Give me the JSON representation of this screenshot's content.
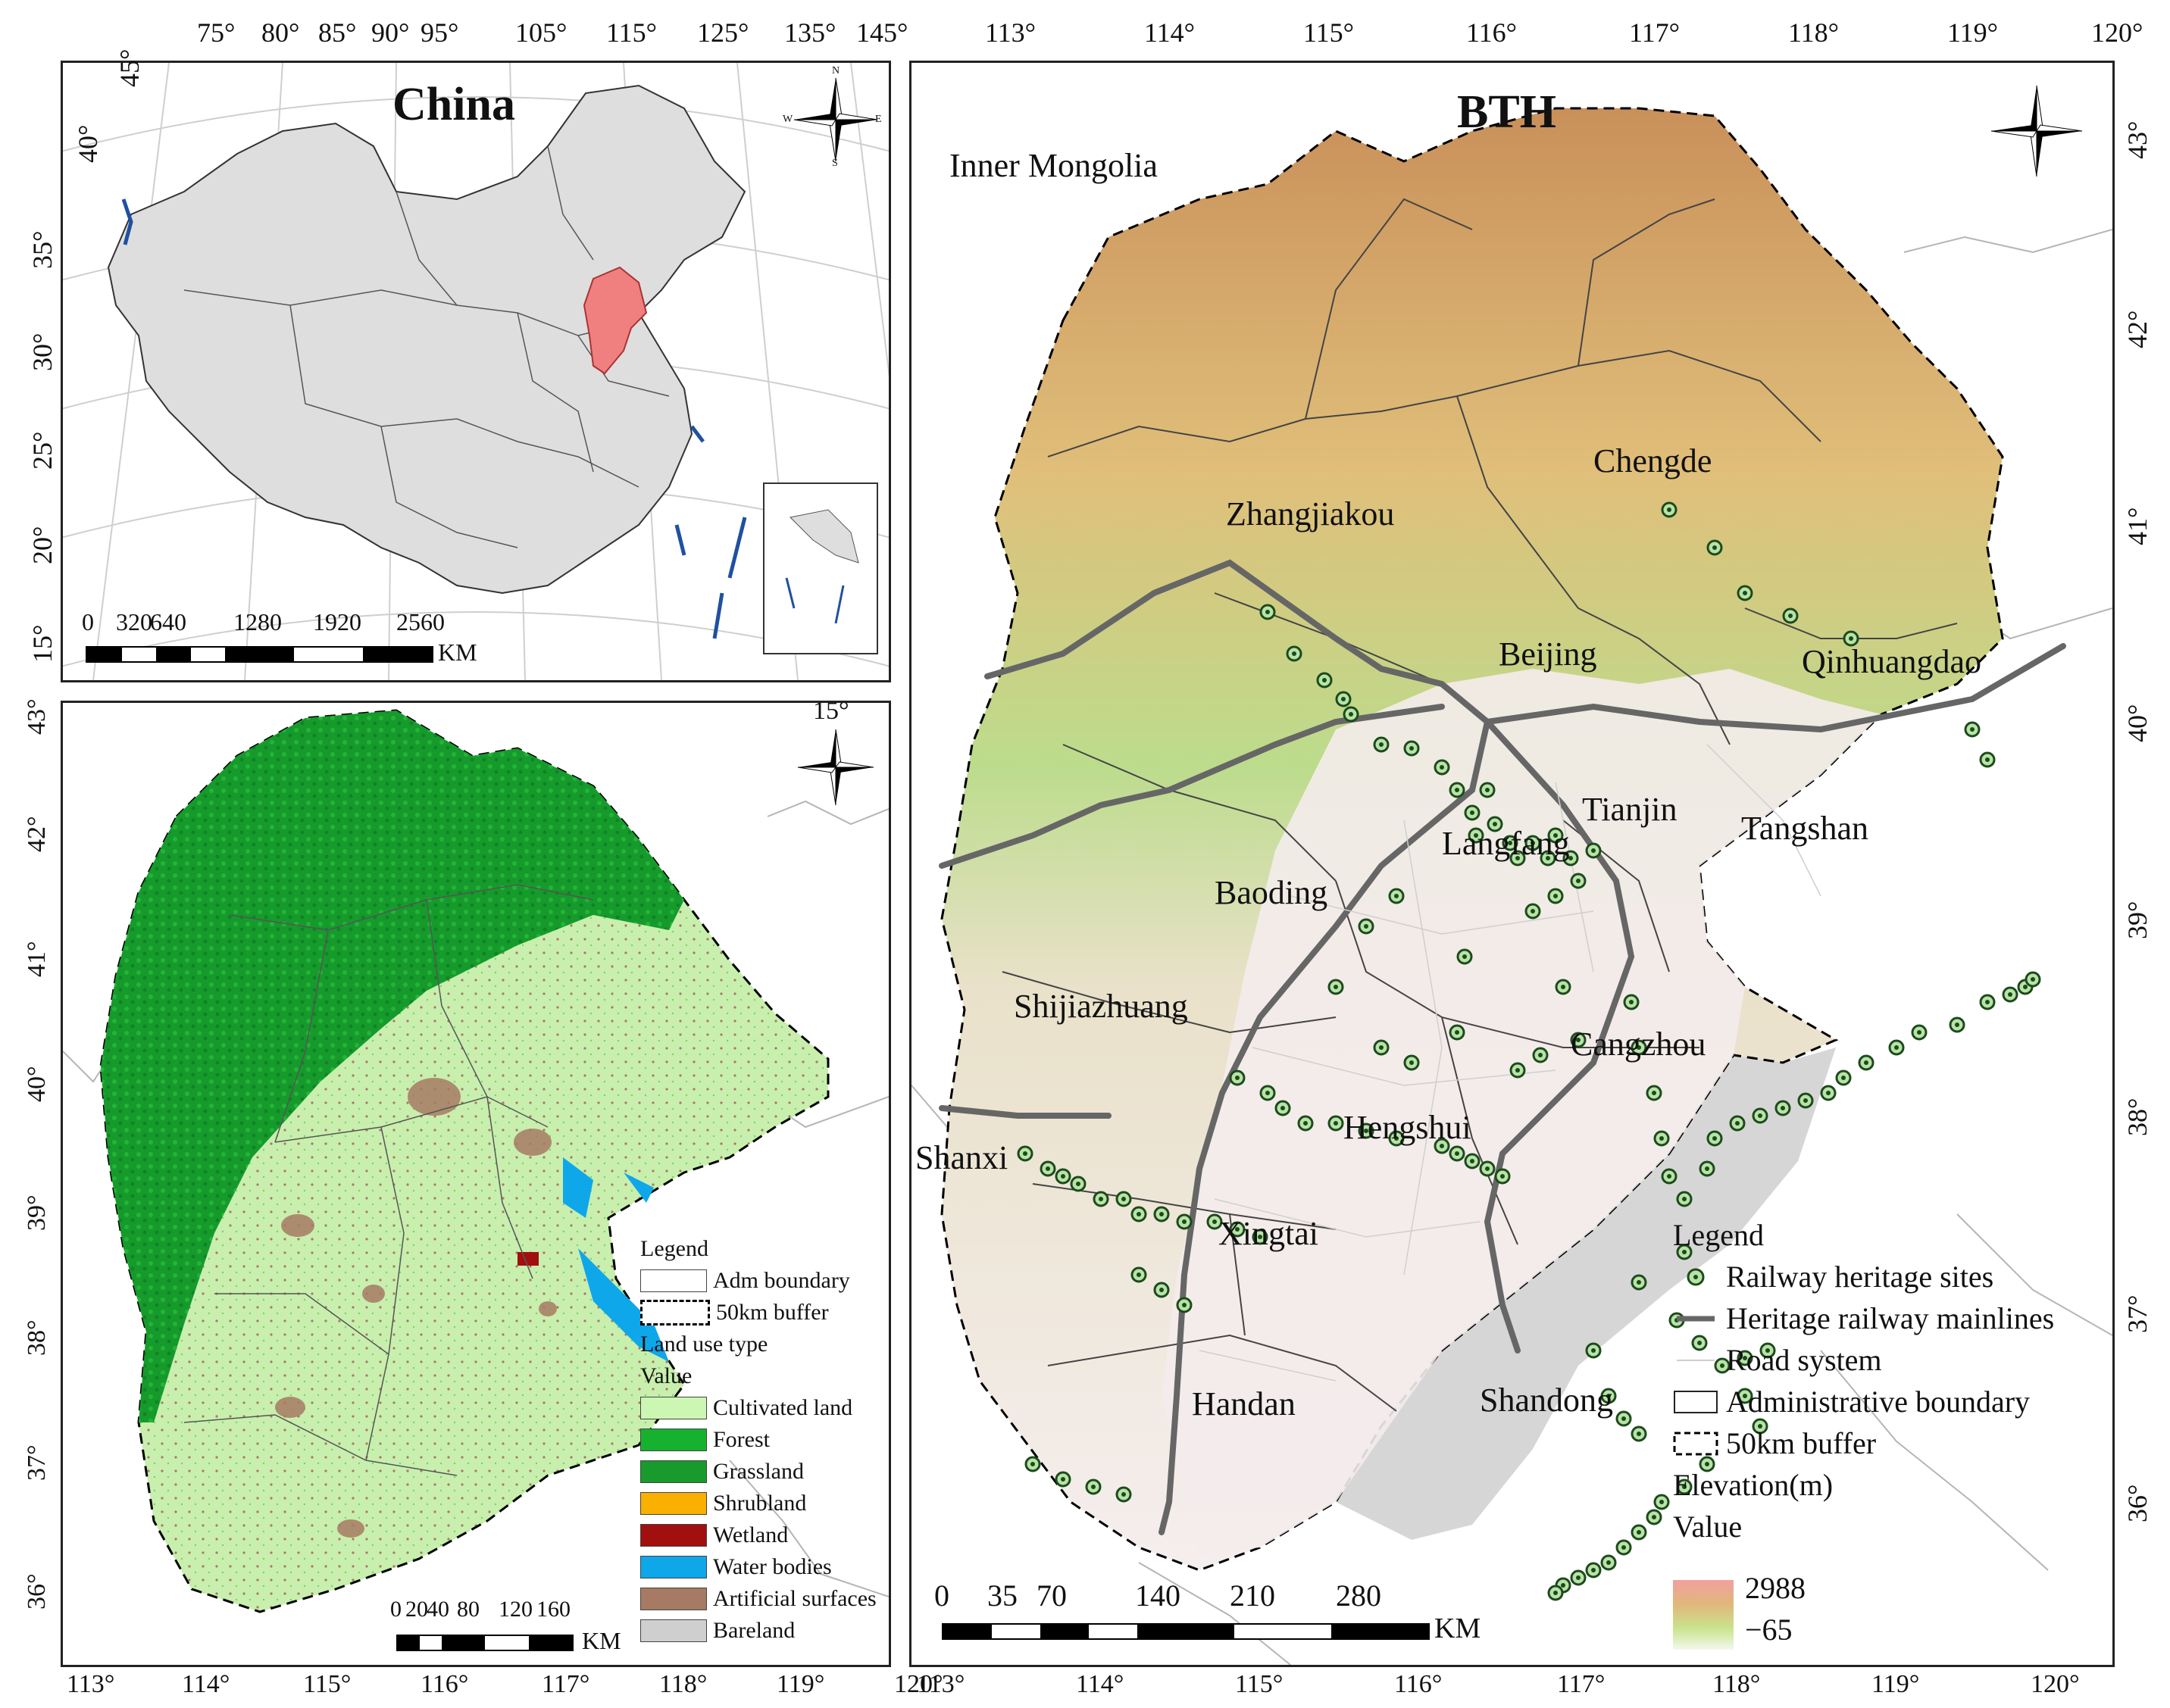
{
  "top_lon_ticks": [
    "75°",
    "80°",
    "85°",
    "90°",
    "95°",
    "105°",
    "115°",
    "125°",
    "135°",
    "145°"
  ],
  "china_lat_ticks": [
    "35°",
    "30°",
    "25°",
    "20°",
    "15°"
  ],
  "china_arc_ticks": [
    "45°",
    "40°"
  ],
  "bth_top_ticks": [
    "113°",
    "114°",
    "115°",
    "116°",
    "117°",
    "118°",
    "119°",
    "120°"
  ],
  "bth_lat_ticks": [
    "43°",
    "42°",
    "41°",
    "40°",
    "39°",
    "38°",
    "37°",
    "36°"
  ],
  "landuse_lat_ticks": [
    "43°",
    "42°",
    "41°",
    "40°",
    "39°",
    "38°",
    "37°",
    "36°"
  ],
  "landuse_extra_tick": "15°",
  "bottom_left_ticks": [
    "113°",
    "114°",
    "115°",
    "116°",
    "117°",
    "118°",
    "119°",
    "120°"
  ],
  "bottom_right_ticks": [
    "113°",
    "114°",
    "115°",
    "116°",
    "117°",
    "118°",
    "119°",
    "120°"
  ],
  "china": {
    "title": "China",
    "scale_labels": [
      "0",
      "320",
      "640",
      "1280",
      "1920",
      "2560"
    ],
    "scale_unit": "KM"
  },
  "bth": {
    "title": "BTH",
    "cities": [
      "Zhangjiakou",
      "Chengde",
      "Beijing",
      "Qinhuangdao",
      "Tianjin",
      "Tangshan",
      "Langfang",
      "Baoding",
      "Shijiazhuang",
      "Cangzhou",
      "Hengshui",
      "Xingtai",
      "Handan"
    ],
    "neighbors": [
      "Inner Mongolia",
      "Shanxi",
      "Shandong"
    ],
    "scale_labels": [
      "0",
      "35",
      "70",
      "140",
      "210",
      "280"
    ],
    "scale_unit": "KM",
    "legend": {
      "title": "Legend",
      "items": [
        "Railway heritage sites",
        "Heritage railway mainlines",
        "Road system",
        "Administrative boundary",
        "50km buffer"
      ],
      "elevation_title": "Elevation(m)",
      "value_title": "Value",
      "elev_high": "2988",
      "elev_low": "−65"
    }
  },
  "landuse": {
    "legend_title": "Legend",
    "adm": "Adm boundary",
    "buffer": "50km buffer",
    "type_title": "Land use type",
    "value_title": "Value",
    "classes": [
      {
        "name": "Cultivated land",
        "color": "#ccf7b3"
      },
      {
        "name": "Forest",
        "color": "#16b22f"
      },
      {
        "name": "Grassland",
        "color": "#189a2c"
      },
      {
        "name": "Shrubland",
        "color": "#f9b000"
      },
      {
        "name": "Wetland",
        "color": "#a20f0f"
      },
      {
        "name": "Water bodies",
        "color": "#0ea7ea"
      },
      {
        "name": "Artificial surfaces",
        "color": "#a77a63"
      },
      {
        "name": "Bareland",
        "color": "#cfcfcf"
      }
    ],
    "scale_labels": [
      "0",
      "20",
      "40",
      "80",
      "120",
      "160"
    ],
    "scale_unit": "KM"
  },
  "compass": {
    "n": "N",
    "s": "S",
    "e": "E",
    "w": "W"
  },
  "colors": {
    "highlight": "#f08080",
    "land_gray": "#dedede",
    "border": "#222222"
  }
}
